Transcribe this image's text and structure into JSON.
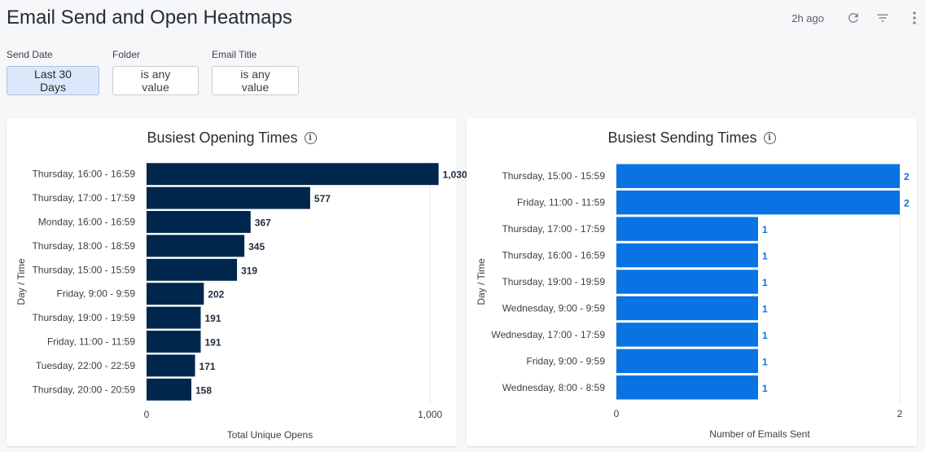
{
  "page": {
    "title": "Email Send and Open Heatmaps",
    "updated": "2h ago",
    "icons": [
      "refresh-icon",
      "filter-icon",
      "more-vert-icon"
    ]
  },
  "filters": [
    {
      "label": "Send Date",
      "value": "Last 30 Days",
      "active": true
    },
    {
      "label": "Folder",
      "value": "is any value",
      "active": false
    },
    {
      "label": "Email Title",
      "value": "is any value",
      "active": false
    }
  ],
  "colors": {
    "opens_bar": "#00264d",
    "sends_bar": "#0a73e3"
  },
  "chart_data": [
    {
      "type": "bar",
      "orientation": "horizontal",
      "title": "Busiest Opening Times",
      "xlabel": "Total Unique Opens",
      "ylabel": "Day / Time",
      "xlim": [
        0,
        1100
      ],
      "xticks": [
        "0",
        "1,000"
      ],
      "xtick_values": [
        0,
        1000
      ],
      "categories": [
        "Thursday, 16:00 - 16:59",
        "Thursday, 17:00 - 17:59",
        "Monday, 16:00 - 16:59",
        "Thursday, 18:00 - 18:59",
        "Thursday, 15:00 - 15:59",
        "Friday, 9:00 - 9:59",
        "Thursday, 19:00 - 19:59",
        "Friday, 11:00 - 11:59",
        "Tuesday, 22:00 - 22:59",
        "Thursday, 20:00 - 20:59"
      ],
      "values": [
        1030,
        577,
        367,
        345,
        319,
        202,
        191,
        191,
        171,
        158
      ],
      "value_labels": [
        "1,030",
        "577",
        "367",
        "345",
        "319",
        "202",
        "191",
        "191",
        "171",
        "158"
      ]
    },
    {
      "type": "bar",
      "orientation": "horizontal",
      "title": "Busiest Sending Times",
      "xlabel": "Number of Emails Sent",
      "ylabel": "Day / Time",
      "xlim": [
        0,
        2
      ],
      "xticks": [
        "0",
        "2"
      ],
      "xtick_values": [
        0,
        2
      ],
      "categories": [
        "Thursday, 15:00 - 15:59",
        "Friday, 11:00 - 11:59",
        "Thursday, 17:00 - 17:59",
        "Thursday, 16:00 - 16:59",
        "Thursday, 19:00 - 19:59",
        "Wednesday, 9:00 - 9:59",
        "Wednesday, 17:00 - 17:59",
        "Friday, 9:00 - 9:59",
        "Wednesday, 8:00 - 8:59"
      ],
      "values": [
        2,
        2,
        1,
        1,
        1,
        1,
        1,
        1,
        1
      ],
      "value_labels": [
        "2",
        "2",
        "1",
        "1",
        "1",
        "1",
        "1",
        "1",
        "1"
      ]
    }
  ]
}
